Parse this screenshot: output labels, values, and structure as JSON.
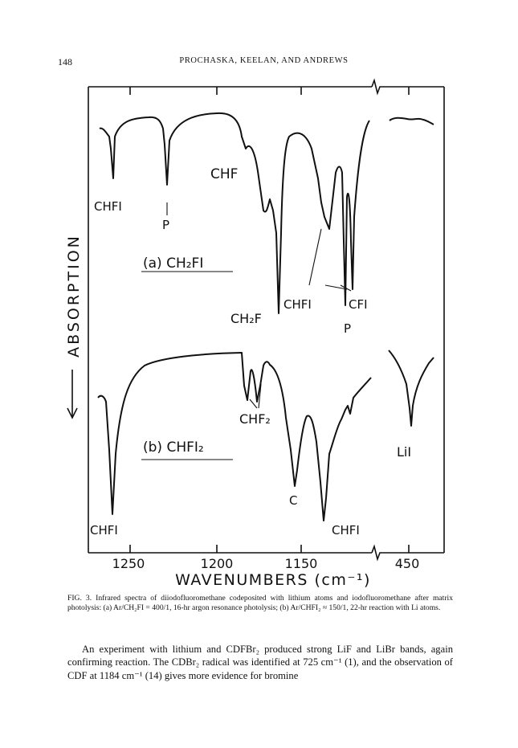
{
  "header": {
    "page_number": "148",
    "running_head": "PROCHASKA, KEELAN, AND ANDREWS"
  },
  "figure": {
    "y_axis_label": "ABSORPTION",
    "x_axis_title": "WAVENUMBERS (cm⁻¹)",
    "x_ticks": [
      "1250",
      "1200",
      "1150",
      "450"
    ],
    "panel_a": {
      "title": "(a) CH₂FI",
      "labels": [
        "CHFI",
        "P",
        "CHF",
        "CH₂F",
        "CHFI",
        "CFI",
        "P"
      ]
    },
    "panel_b": {
      "title": "(b) CHFI₂",
      "labels": [
        "CHFI",
        "CHF₂",
        "C",
        "CHFI",
        "LiI"
      ]
    }
  },
  "caption": {
    "fig_number": "FIG. 3.",
    "text": "Infrared spectra of diiodofluoromethane codeposited with lithium atoms and iodofluoromethane after matrix photolysis: (a) Ar/CH₂FI = 400/1, 16-hr argon resonance photolysis; (b) Ar/CHFI₂ ≈ 150/1, 22-hr reaction with Li atoms."
  },
  "body": {
    "paragraph": "An experiment with lithium and CDFBr₂ produced strong LiF and LiBr bands, again confirming reaction. The CDBr₂ radical was identified at 725 cm⁻¹ (1), and the observation of CDF at 1184 cm⁻¹ (14) gives more evidence for bromine"
  }
}
